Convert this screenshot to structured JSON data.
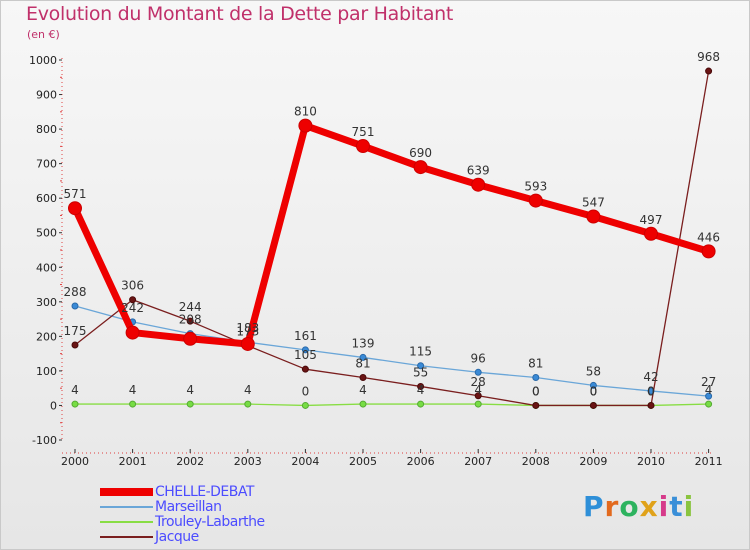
{
  "title": "Evolution du Montant de la Dette par Habitant",
  "subtitle": "(en €)",
  "logo": {
    "text": "Proxiti",
    "letters": [
      "P",
      "r",
      "o",
      "x",
      "i",
      "t",
      "i"
    ],
    "colors": [
      "#2e8fd8",
      "#e26a1e",
      "#2db35f",
      "#e0a21a",
      "#d63a8a",
      "#3a8fd8",
      "#8ac43f"
    ]
  },
  "chart_data": {
    "type": "line",
    "title": "Evolution du Montant de la Dette par Habitant",
    "ylabel": "(en €)",
    "xlabel": "",
    "categories": [
      "2000",
      "2001",
      "2002",
      "2003",
      "2004",
      "2005",
      "2006",
      "2007",
      "2008",
      "2009",
      "2010",
      "2011"
    ],
    "yticks": [
      "-100",
      "0",
      "100",
      "200",
      "300",
      "400",
      "500",
      "600",
      "700",
      "800",
      "900",
      "1000"
    ],
    "ylim": [
      -100,
      1000
    ],
    "grid": false,
    "series": [
      {
        "name": "CHELLE-DEBAT",
        "color": "#ee0000",
        "values": [
          571,
          211,
          193,
          178,
          810,
          751,
          690,
          639,
          593,
          547,
          497,
          446
        ],
        "labels": [
          "571",
          "",
          "",
          "",
          "810",
          "751",
          "690",
          "639",
          "593",
          "547",
          "497",
          "446"
        ]
      },
      {
        "name": "Marseillan",
        "color": "#6aa6d8",
        "values": [
          288,
          242,
          208,
          183,
          161,
          139,
          115,
          96,
          81,
          58,
          42,
          27
        ],
        "labels": [
          "288",
          "242",
          "208",
          "183",
          "161",
          "139",
          "115",
          "96",
          "81",
          "58",
          "42",
          "27"
        ]
      },
      {
        "name": "Trouley-Labarthe",
        "color": "#88dd44",
        "values": [
          4,
          4,
          4,
          4,
          0,
          4,
          4,
          4,
          0,
          0,
          0,
          4
        ],
        "labels": [
          "4",
          "4",
          "4",
          "4",
          "0",
          "4",
          "4",
          "4",
          "0",
          "0",
          "0",
          "4"
        ]
      },
      {
        "name": "Jacque",
        "color": "#7a1e1e",
        "values": [
          175,
          306,
          244,
          173,
          105,
          81,
          55,
          28,
          0,
          0,
          0,
          968
        ],
        "labels": [
          "175",
          "306",
          "244",
          "173",
          "105",
          "81",
          "55",
          "28",
          "0",
          "0",
          "0",
          "968"
        ]
      }
    ]
  }
}
